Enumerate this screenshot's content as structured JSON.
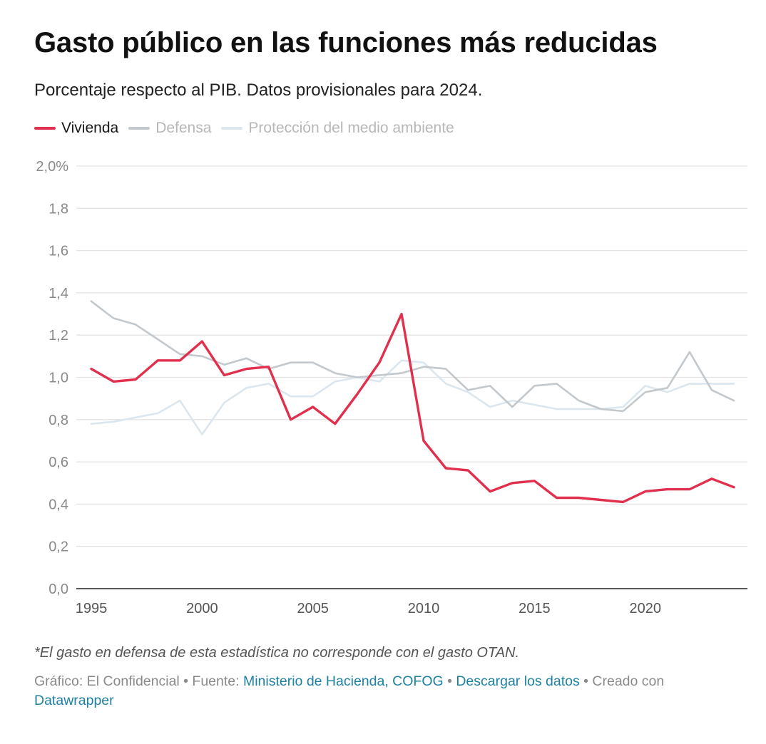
{
  "header": {
    "title": "Gasto público en las funciones más reducidas",
    "subtitle": "Porcentaje respecto al PIB. Datos provisionales para 2024."
  },
  "legend": [
    {
      "label": "Vivienda",
      "color": "#e0304e"
    },
    {
      "label": "Defensa",
      "color": "#c2c8cc"
    },
    {
      "label": "Protección del medio ambiente",
      "color": "#dce6ee"
    }
  ],
  "chart_data": {
    "type": "line",
    "title": "Gasto público en las funciones más reducidas",
    "ylabel": "Porcentaje respecto al PIB",
    "ylim": [
      0,
      2.0
    ],
    "xlim": [
      1995,
      2024
    ],
    "y_ticks": [
      0,
      0.2,
      0.4,
      0.6,
      0.8,
      1.0,
      1.2,
      1.4,
      1.6,
      1.8,
      2.0
    ],
    "y_tick_labels": [
      "0,0",
      "0,2",
      "0,4",
      "0,6",
      "0,8",
      "1,0",
      "1,2",
      "1,4",
      "1,6",
      "1,8",
      "2,0%"
    ],
    "x_ticks": [
      1995,
      2000,
      2005,
      2010,
      2015,
      2020
    ],
    "x_tick_labels": [
      "1995",
      "2000",
      "2005",
      "2010",
      "2015",
      "2020"
    ],
    "x": [
      1995,
      1996,
      1997,
      1998,
      1999,
      2000,
      2001,
      2002,
      2003,
      2004,
      2005,
      2006,
      2007,
      2008,
      2009,
      2010,
      2011,
      2012,
      2013,
      2014,
      2015,
      2016,
      2017,
      2018,
      2019,
      2020,
      2021,
      2022,
      2023,
      2024
    ],
    "series": [
      {
        "name": "Protección del medio ambiente",
        "color": "#dce6ee",
        "values": [
          0.78,
          0.79,
          0.81,
          0.83,
          0.89,
          0.73,
          0.88,
          0.95,
          0.97,
          0.91,
          0.91,
          0.98,
          1.0,
          0.98,
          1.08,
          1.07,
          0.97,
          0.93,
          0.86,
          0.89,
          0.87,
          0.85,
          0.85,
          0.85,
          0.86,
          0.96,
          0.93,
          0.97,
          0.97,
          0.97
        ]
      },
      {
        "name": "Defensa",
        "color": "#c2c8cc",
        "values": [
          1.36,
          1.28,
          1.25,
          1.18,
          1.11,
          1.1,
          1.06,
          1.09,
          1.04,
          1.07,
          1.07,
          1.02,
          1.0,
          1.01,
          1.02,
          1.05,
          1.04,
          0.94,
          0.96,
          0.86,
          0.96,
          0.97,
          0.89,
          0.85,
          0.84,
          0.93,
          0.95,
          1.12,
          0.94,
          0.89
        ]
      },
      {
        "name": "Vivienda",
        "color": "#e0304e",
        "values": [
          1.04,
          0.98,
          0.99,
          1.08,
          1.08,
          1.17,
          1.01,
          1.04,
          1.05,
          0.8,
          0.86,
          0.78,
          0.92,
          1.07,
          1.3,
          0.7,
          0.57,
          0.56,
          0.46,
          0.5,
          0.51,
          0.43,
          0.43,
          0.42,
          0.41,
          0.46,
          0.47,
          0.47,
          0.52,
          0.48
        ]
      }
    ]
  },
  "notes": {
    "footnote": "*El gasto en defensa de esta estadística no corresponde con el gasto OTAN.",
    "credit_prefix": "Gráfico: El Confidencial • Fuente: ",
    "source_link": "Ministerio de Hacienda, COFOG",
    "separator": " • ",
    "download_link": "Descargar los datos",
    "created_with": " • Creado con ",
    "tool_link": "Datawrapper"
  }
}
